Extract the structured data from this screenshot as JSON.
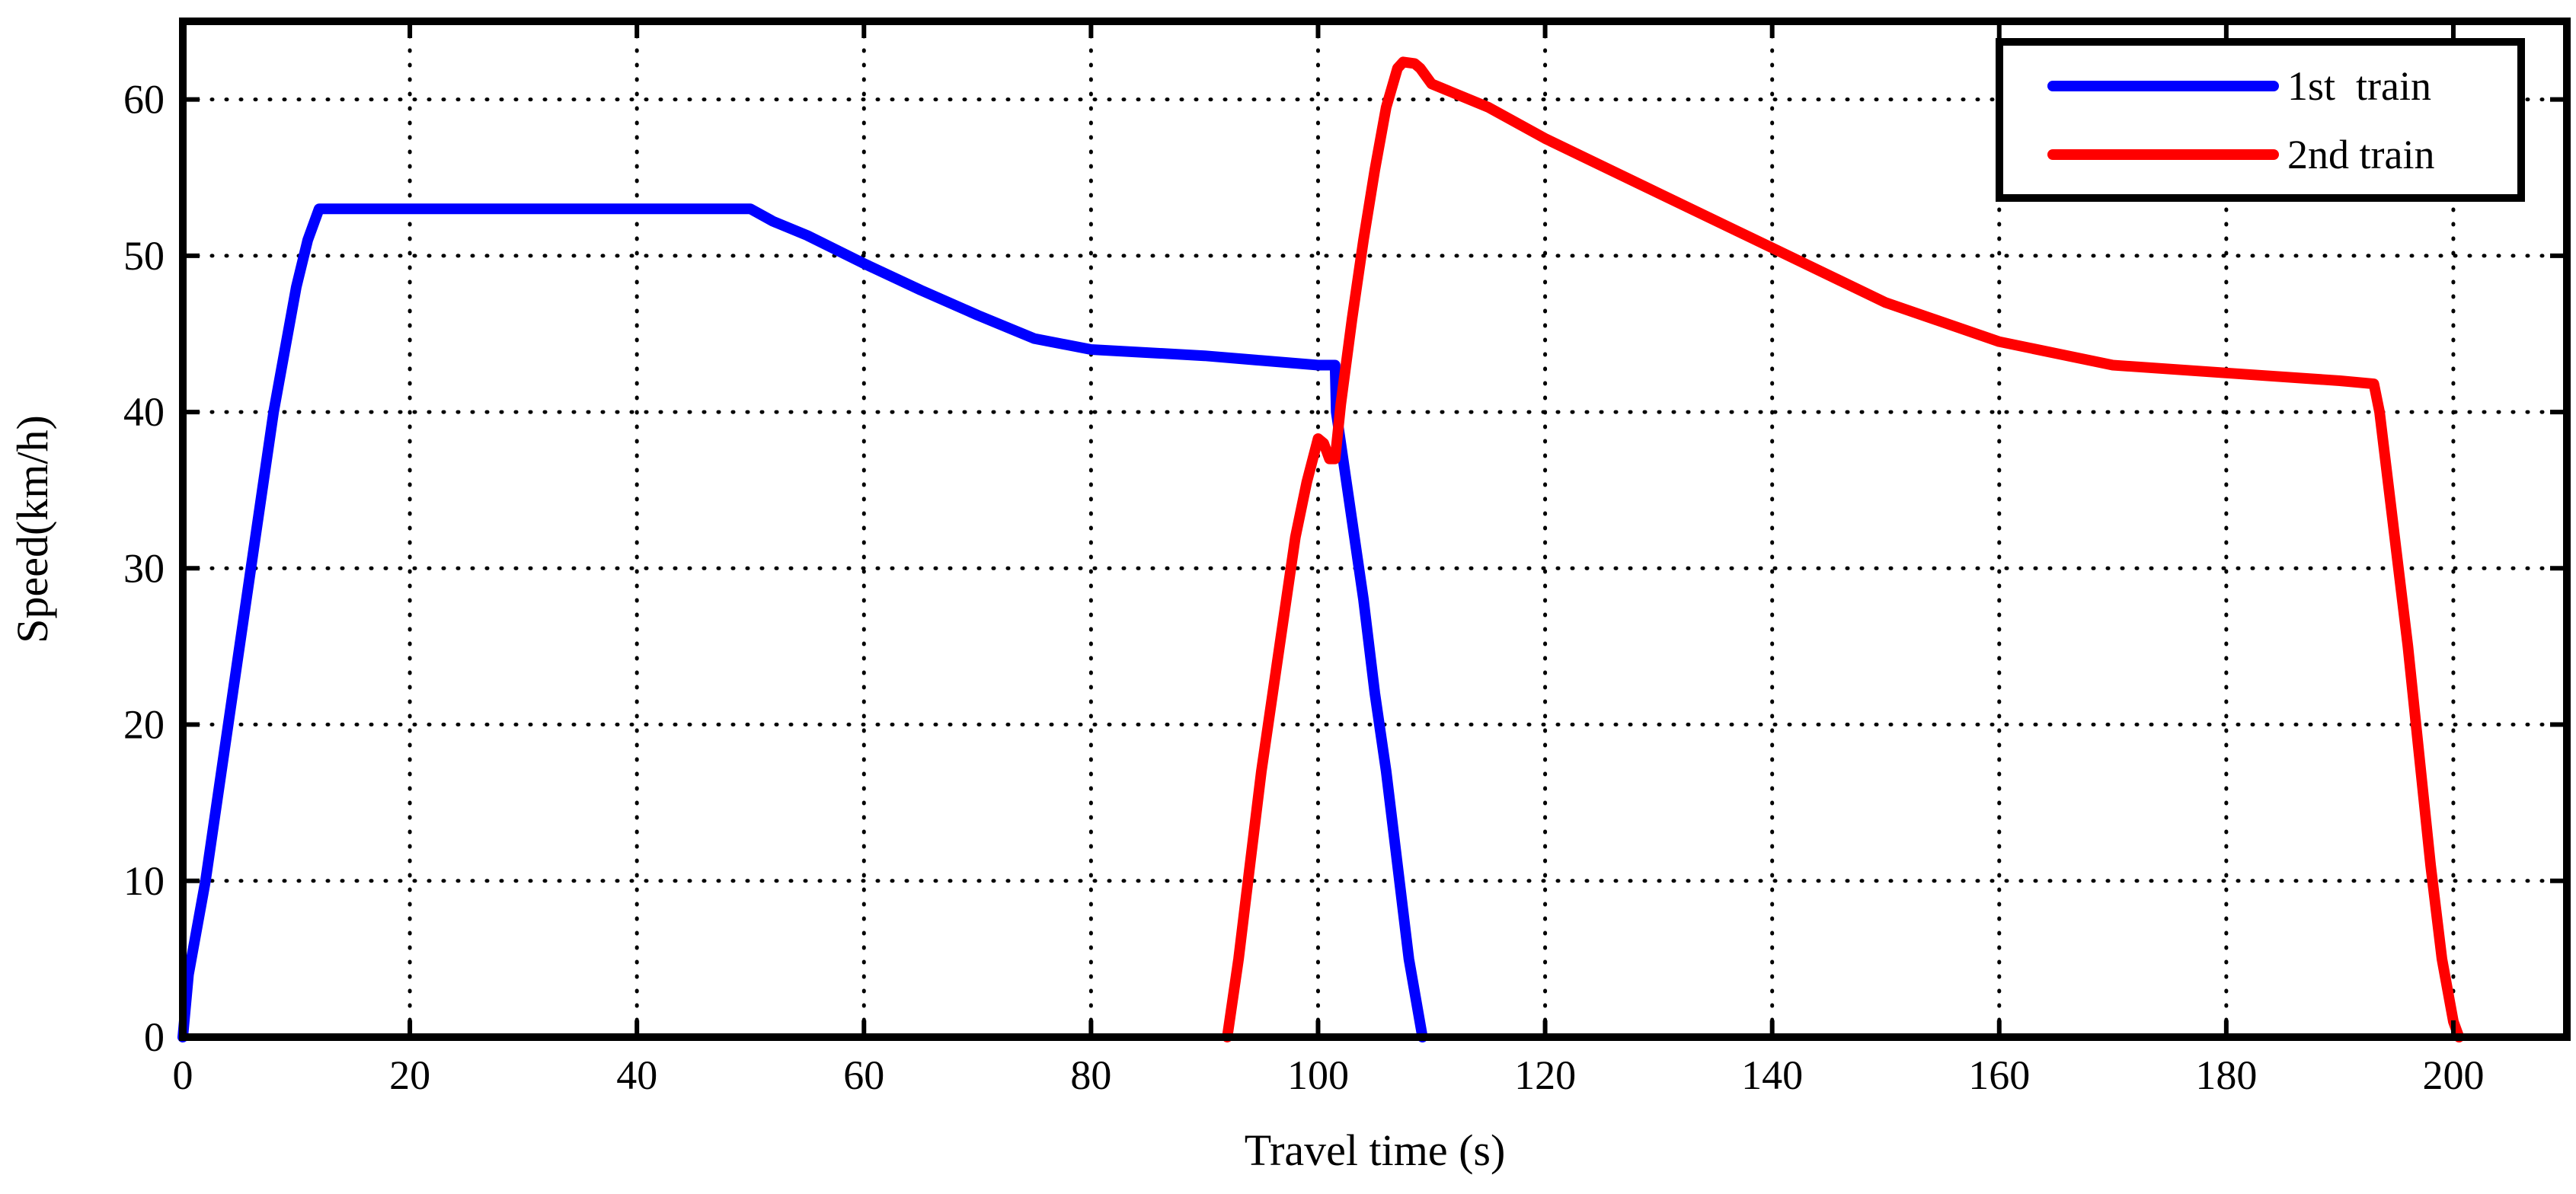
{
  "chart_data": {
    "type": "line",
    "title": "",
    "xlabel": "Travel time (s)",
    "ylabel": "Speed(km/h)",
    "xlim": [
      0,
      210
    ],
    "ylim": [
      0,
      65
    ],
    "xticks": [
      0,
      20,
      40,
      60,
      80,
      100,
      120,
      140,
      160,
      180,
      200
    ],
    "yticks": [
      0,
      10,
      20,
      30,
      40,
      50,
      60
    ],
    "grid": true,
    "legend_position": "top-right",
    "series": [
      {
        "name": "1st  train",
        "color": "#0000ff",
        "x": [
          0,
          0.5,
          2,
          4,
          6,
          8,
          10,
          11,
          12,
          20,
          30,
          40,
          50,
          52,
          55,
          60,
          65,
          70,
          75,
          80,
          85,
          90,
          95,
          100,
          101.5,
          101.6,
          102,
          103,
          104,
          105,
          106,
          107,
          108,
          109.2
        ],
        "y": [
          0,
          4,
          10,
          20,
          30,
          40,
          48,
          51,
          53,
          53,
          53,
          53,
          53,
          52.2,
          51.3,
          49.5,
          47.8,
          46.2,
          44.7,
          44,
          43.8,
          43.6,
          43.3,
          43,
          43,
          40,
          38,
          33,
          28,
          22,
          17,
          11,
          5,
          0
        ]
      },
      {
        "name": "2nd train",
        "color": "#ff0000",
        "x": [
          92,
          93,
          94,
          95,
          96,
          97,
          98,
          99,
          100,
          100.5,
          101,
          101.5,
          102,
          103,
          104,
          105,
          106,
          107,
          107.5,
          108.5,
          109,
          110,
          115,
          120,
          130,
          140,
          150,
          160,
          170,
          180,
          190,
          193,
          193.5,
          195,
          196,
          197,
          198,
          199,
          200,
          200.5
        ],
        "y": [
          0,
          5,
          11,
          17,
          22,
          27,
          32,
          35.5,
          38.3,
          38,
          37,
          37,
          40.5,
          46,
          51,
          55.5,
          59.5,
          62,
          62.4,
          62.3,
          62,
          61,
          59.5,
          57.5,
          54,
          50.5,
          47,
          44.5,
          43,
          42.5,
          42,
          41.8,
          40,
          31,
          25,
          18,
          11,
          5,
          1,
          0
        ]
      }
    ]
  }
}
